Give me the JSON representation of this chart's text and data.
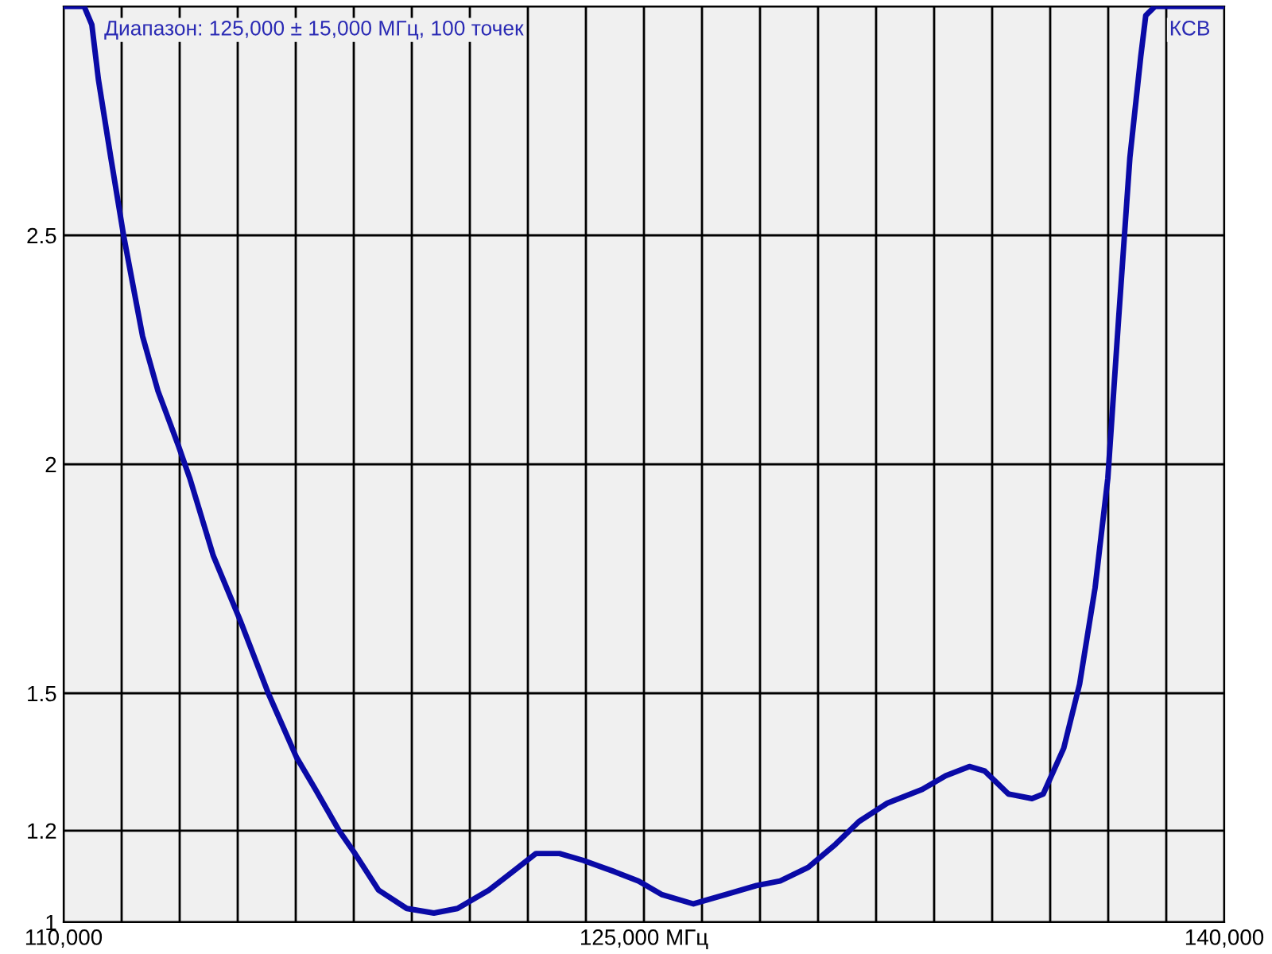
{
  "chart_data": {
    "type": "line",
    "annotations": [
      "Диапазон: 125,000 ± 15,000 МГц, 100 точек",
      "КСВ"
    ],
    "x": [
      110000,
      110530,
      110730,
      110900,
      111220,
      111550,
      112040,
      112440,
      112970,
      113260,
      113870,
      114560,
      115290,
      116020,
      116510,
      117120,
      117530,
      118140,
      118870,
      119570,
      120180,
      120990,
      121600,
      122210,
      122820,
      123430,
      124250,
      124860,
      125470,
      126280,
      127100,
      127910,
      128520,
      129250,
      129950,
      130560,
      131290,
      132190,
      132800,
      133410,
      133810,
      134420,
      135030,
      135320,
      135850,
      136260,
      136660,
      136990,
      137270,
      137560,
      137840,
      137970,
      138210,
      140000
    ],
    "series": [
      {
        "color": "#0a0aa6",
        "values": [
          3.0,
          3.0,
          2.96,
          2.84,
          2.67,
          2.5,
          2.28,
          2.16,
          2.04,
          1.97,
          1.8,
          1.66,
          1.5,
          1.36,
          1.29,
          1.2,
          1.15,
          1.07,
          1.03,
          1.02,
          1.03,
          1.07,
          1.11,
          1.15,
          1.15,
          1.135,
          1.11,
          1.09,
          1.06,
          1.04,
          1.06,
          1.08,
          1.09,
          1.12,
          1.17,
          1.22,
          1.26,
          1.29,
          1.32,
          1.34,
          1.33,
          1.28,
          1.27,
          1.28,
          1.38,
          1.52,
          1.73,
          1.97,
          2.32,
          2.67,
          2.89,
          2.98,
          3.0,
          3.0
        ]
      }
    ],
    "xlim": [
      110000,
      140000
    ],
    "xticks": [
      {
        "value": 110000,
        "label": "110,000"
      },
      {
        "value": 111500,
        "label": null
      },
      {
        "value": 113000,
        "label": null
      },
      {
        "value": 114500,
        "label": null
      },
      {
        "value": 116000,
        "label": null
      },
      {
        "value": 117500,
        "label": null
      },
      {
        "value": 119000,
        "label": null
      },
      {
        "value": 120500,
        "label": null
      },
      {
        "value": 122000,
        "label": null
      },
      {
        "value": 123500,
        "label": null
      },
      {
        "value": 125000,
        "label": "125,000 МГц"
      },
      {
        "value": 126500,
        "label": null
      },
      {
        "value": 128000,
        "label": null
      },
      {
        "value": 129500,
        "label": null
      },
      {
        "value": 131000,
        "label": null
      },
      {
        "value": 132500,
        "label": null
      },
      {
        "value": 134000,
        "label": null
      },
      {
        "value": 135500,
        "label": null
      },
      {
        "value": 137000,
        "label": null
      },
      {
        "value": 138500,
        "label": null
      },
      {
        "value": 140000,
        "label": "140,000"
      }
    ],
    "ylim": [
      1,
      3
    ],
    "yticks": [
      1,
      1.2,
      1.5,
      2,
      2.5,
      {
        "value": 3,
        "label": null
      }
    ],
    "grid": true,
    "marker": "none",
    "line_style": "solid"
  }
}
